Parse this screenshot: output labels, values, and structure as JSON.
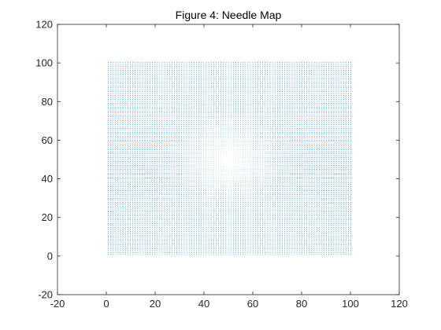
{
  "chart_data": {
    "type": "quiver",
    "title": "Figure 4: Needle Map",
    "xlabel": "",
    "ylabel": "",
    "xlim": [
      -20,
      120
    ],
    "ylim": [
      -20,
      120
    ],
    "xticks": [
      -20,
      0,
      20,
      40,
      60,
      80,
      100,
      120
    ],
    "yticks": [
      -20,
      0,
      20,
      40,
      60,
      80,
      100,
      120
    ],
    "grid": false,
    "box": true,
    "field": {
      "x_range": [
        1,
        100
      ],
      "y_range": [
        1,
        100
      ],
      "spacing": 1,
      "center": [
        50,
        50
      ],
      "direction": "radial-outward",
      "max_length": 0.45
    },
    "color": "#0072bd"
  }
}
